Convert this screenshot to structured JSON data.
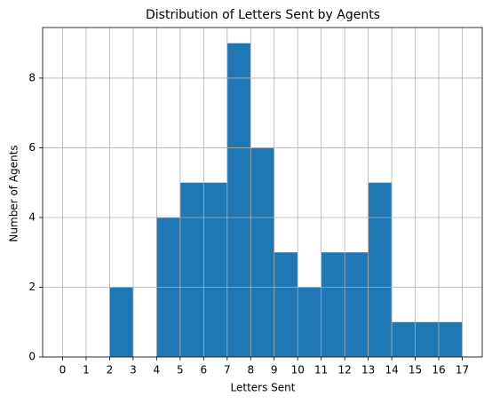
{
  "chart_data": {
    "type": "histogram",
    "title": "Distribution of Letters Sent by Agents",
    "xlabel": "Letters Sent",
    "ylabel": "Number of Agents",
    "bins": [
      0,
      1,
      2,
      3,
      4,
      5,
      6,
      7,
      8,
      9,
      10,
      11,
      12,
      13,
      14,
      15,
      16,
      17
    ],
    "values": [
      0,
      0,
      2,
      0,
      4,
      5,
      5,
      9,
      6,
      3,
      2,
      3,
      3,
      5,
      1,
      1,
      1
    ],
    "color": "#1f77b4",
    "xlim": [
      -0.85,
      17.85
    ],
    "ylim": [
      0,
      9.45
    ],
    "xticks": [
      0,
      1,
      2,
      3,
      4,
      5,
      6,
      7,
      8,
      9,
      10,
      11,
      12,
      13,
      14,
      15,
      16,
      17
    ],
    "yticks": [
      0,
      2,
      4,
      6,
      8
    ],
    "grid": true
  }
}
